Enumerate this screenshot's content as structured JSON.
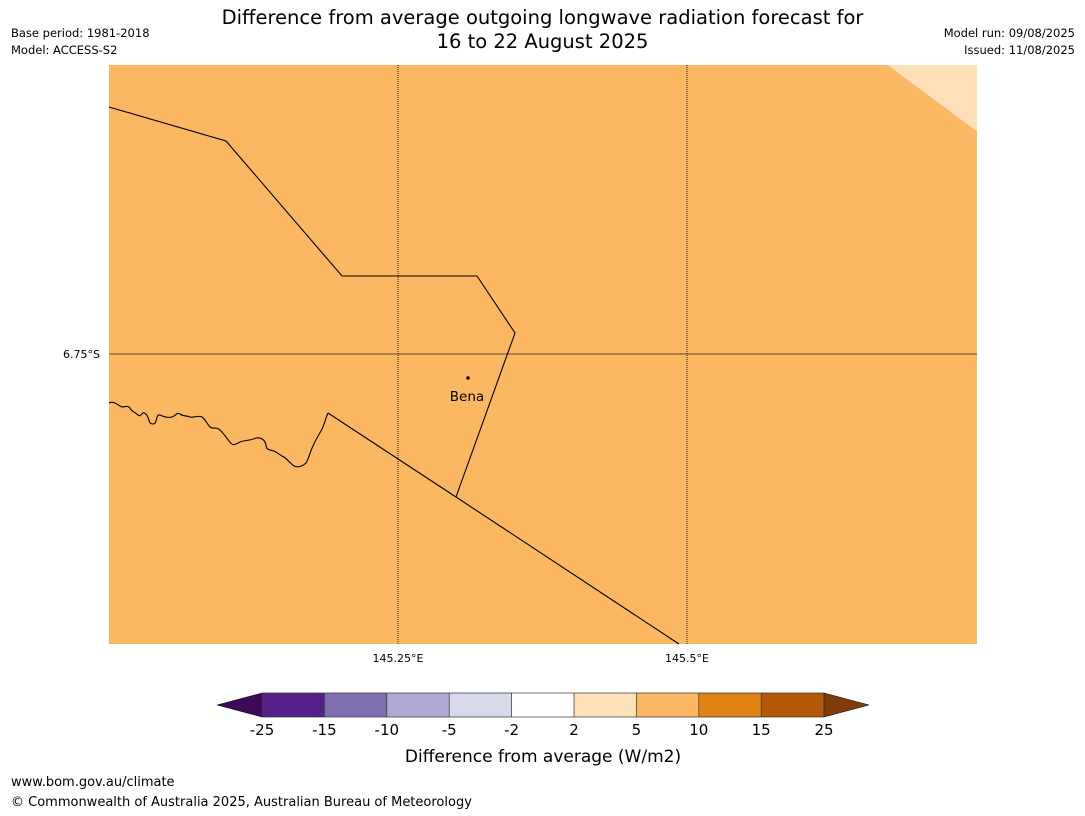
{
  "title": {
    "line1": "Difference from average outgoing longwave radiation forecast for",
    "line2": "16 to 22 August 2025"
  },
  "meta_left": {
    "base_period": "Base period: 1981-2018",
    "model": "Model: ACCESS-S2"
  },
  "meta_right": {
    "model_run": "Model run: 09/08/2025",
    "issued": "Issued: 11/08/2025"
  },
  "map": {
    "fill_color": "#fbb762",
    "corner_fill_color": "#fde0b8",
    "place": {
      "name": "Bena"
    },
    "lat_labels": [
      "6.75°S"
    ],
    "lon_labels": [
      "145.25°E",
      "145.5°E"
    ]
  },
  "colorbar": {
    "title": "Difference from average (W/m2)",
    "ticks": [
      "-25",
      "-15",
      "-10",
      "-5",
      "-2",
      "2",
      "5",
      "10",
      "15",
      "25"
    ],
    "colors": [
      "#3d0a5a",
      "#56218b",
      "#7f6fae",
      "#b0a7d2",
      "#d8d9ea",
      "#ffffff",
      "#fde0b8",
      "#fbb762",
      "#e08214",
      "#b35806",
      "#7f3b08"
    ]
  },
  "footer": {
    "website": "www.bom.gov.au/climate",
    "copyright": "© Commonwealth of Australia 2025, Australian Bureau of Meteorology"
  }
}
